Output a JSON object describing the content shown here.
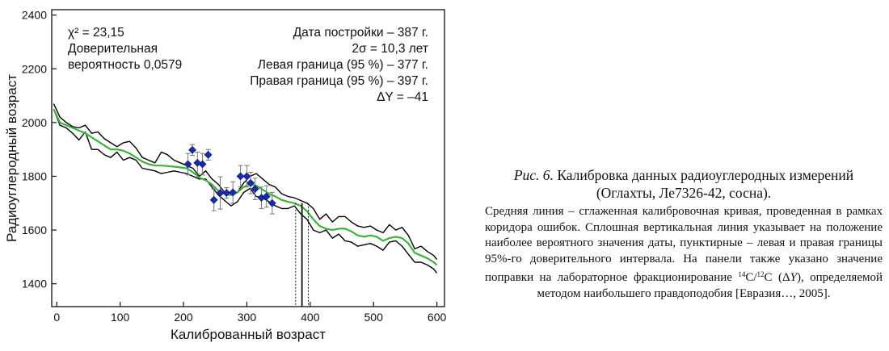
{
  "chart_data": {
    "type": "line",
    "xlabel": "Калиброванный возраст",
    "ylabel": "Радиоуглеродный возраст",
    "xlim": [
      -8,
      612
    ],
    "ylim": [
      1315,
      2420
    ],
    "x_ticks": [
      "0",
      "100",
      "200",
      "300",
      "400",
      "500",
      "600"
    ],
    "y_ticks": [
      "1400",
      "1600",
      "1800",
      "2000",
      "2200",
      "2400"
    ],
    "grid": false,
    "series": [
      {
        "role": "upper-bound",
        "color": "#000000",
        "x": [
          -5,
          5,
          15,
          25,
          35,
          45,
          55,
          65,
          75,
          85,
          95,
          105,
          115,
          125,
          135,
          145,
          155,
          165,
          175,
          185,
          195,
          205,
          215,
          225,
          235,
          245,
          255,
          265,
          275,
          285,
          295,
          305,
          315,
          325,
          335,
          345,
          355,
          365,
          375,
          385,
          395,
          405,
          415,
          425,
          435,
          445,
          455,
          465,
          475,
          485,
          495,
          505,
          515,
          525,
          535,
          545,
          555,
          565,
          575,
          585,
          595,
          600
        ],
        "y": [
          2070,
          2020,
          2000,
          1985,
          1980,
          1990,
          1960,
          1965,
          1940,
          1925,
          1910,
          1925,
          1930,
          1905,
          1870,
          1860,
          1850,
          1890,
          1880,
          1860,
          1850,
          1840,
          1830,
          1800,
          1820,
          1790,
          1770,
          1740,
          1730,
          1740,
          1775,
          1800,
          1810,
          1790,
          1770,
          1760,
          1735,
          1725,
          1720,
          1710,
          1700,
          1680,
          1640,
          1660,
          1630,
          1650,
          1650,
          1630,
          1615,
          1610,
          1615,
          1600,
          1590,
          1620,
          1600,
          1610,
          1580,
          1530,
          1540,
          1520,
          1505,
          1490
        ]
      },
      {
        "role": "lower-bound",
        "color": "#000000",
        "x": [
          -5,
          5,
          15,
          25,
          35,
          45,
          55,
          65,
          75,
          85,
          95,
          105,
          115,
          125,
          135,
          145,
          155,
          165,
          175,
          185,
          195,
          205,
          215,
          225,
          235,
          245,
          255,
          265,
          275,
          285,
          295,
          305,
          315,
          325,
          335,
          345,
          355,
          365,
          375,
          385,
          395,
          405,
          415,
          425,
          435,
          445,
          455,
          465,
          475,
          485,
          495,
          505,
          515,
          525,
          535,
          545,
          555,
          565,
          575,
          585,
          595,
          600
        ],
        "y": [
          2050,
          1990,
          1980,
          1960,
          1935,
          1965,
          1900,
          1900,
          1880,
          1870,
          1890,
          1860,
          1870,
          1860,
          1830,
          1825,
          1820,
          1810,
          1815,
          1820,
          1815,
          1810,
          1800,
          1790,
          1790,
          1760,
          1730,
          1710,
          1690,
          1705,
          1740,
          1755,
          1725,
          1720,
          1705,
          1690,
          1680,
          1680,
          1690,
          1660,
          1640,
          1600,
          1590,
          1600,
          1570,
          1585,
          1560,
          1555,
          1540,
          1545,
          1550,
          1540,
          1525,
          1555,
          1560,
          1540,
          1510,
          1480,
          1480,
          1470,
          1455,
          1440
        ]
      },
      {
        "role": "smoothed-calibration-curve",
        "color": "#3cb43c",
        "x": [
          -5,
          5,
          15,
          25,
          35,
          45,
          55,
          65,
          75,
          85,
          95,
          105,
          115,
          125,
          135,
          145,
          155,
          165,
          175,
          185,
          195,
          205,
          215,
          225,
          235,
          245,
          255,
          265,
          275,
          285,
          295,
          305,
          315,
          325,
          335,
          345,
          355,
          365,
          375,
          385,
          395,
          405,
          415,
          425,
          435,
          445,
          455,
          465,
          475,
          485,
          495,
          505,
          515,
          525,
          535,
          545,
          555,
          565,
          575,
          585,
          595,
          600
        ],
        "y": [
          2050,
          2000,
          1990,
          1980,
          1970,
          1960,
          1945,
          1930,
          1915,
          1900,
          1900,
          1895,
          1885,
          1870,
          1855,
          1845,
          1840,
          1840,
          1838,
          1836,
          1833,
          1830,
          1815,
          1795,
          1785,
          1770,
          1745,
          1735,
          1730,
          1740,
          1760,
          1770,
          1765,
          1750,
          1735,
          1725,
          1712,
          1705,
          1700,
          1690,
          1670,
          1640,
          1615,
          1605,
          1600,
          1605,
          1605,
          1595,
          1580,
          1575,
          1580,
          1575,
          1560,
          1570,
          1575,
          1570,
          1550,
          1515,
          1505,
          1495,
          1480,
          1470
        ]
      }
    ],
    "measurements": {
      "color": "#1a2aa8",
      "points": [
        {
          "x": 207,
          "y": 1845,
          "err": 40
        },
        {
          "x": 214,
          "y": 1898,
          "err": 20
        },
        {
          "x": 222,
          "y": 1850,
          "err": 40
        },
        {
          "x": 230,
          "y": 1845,
          "err": 40
        },
        {
          "x": 239,
          "y": 1880,
          "err": 20
        },
        {
          "x": 248,
          "y": 1712,
          "err": 40
        },
        {
          "x": 258,
          "y": 1738,
          "err": 60
        },
        {
          "x": 268,
          "y": 1738,
          "err": 20
        },
        {
          "x": 278,
          "y": 1740,
          "err": 40
        },
        {
          "x": 290,
          "y": 1800,
          "err": 40
        },
        {
          "x": 300,
          "y": 1800,
          "err": 40
        },
        {
          "x": 306,
          "y": 1775,
          "err": 40
        },
        {
          "x": 313,
          "y": 1753,
          "err": 40
        },
        {
          "x": 323,
          "y": 1720,
          "err": 40
        },
        {
          "x": 331,
          "y": 1725,
          "err": 40
        },
        {
          "x": 340,
          "y": 1700,
          "err": 40
        }
      ]
    },
    "vertical_lines": [
      {
        "x": 377,
        "style": "dotted",
        "y_top": 1700
      },
      {
        "x": 387,
        "style": "solid",
        "y_top": 1700
      },
      {
        "x": 397,
        "style": "dotted",
        "y_top": 1700
      }
    ],
    "annotations": {
      "left": [
        "χ² = 23,15",
        "Доверительная",
        "вероятность 0,0579"
      ],
      "right": [
        "Дата постройки – 387 г.",
        "2σ = 10,3 лет",
        "Левая граница (95 %) – 377 г.",
        "Правая граница (95 %) – 397 г.",
        "ΔY = –41"
      ]
    }
  },
  "caption": {
    "title_italic": "Рис. 6.",
    "title_rest": " Калибровка данных радиоуглеродных измерений (Оглахты, Ле7326-42, сосна).",
    "body_part1": "Средняя линия – сглаженная калибровочная кривая, проведенная в рамках коридора ошибок. Сплошная вертикальная линия указывает на положение наиболее вероятного значения даты, пунктирные – левая и правая границы 95%-го доверительного интервала. На панели также указано значение поправки на лабораторное фракционирование ",
    "sup1": "14",
    "c1": "C/",
    "sup2": "12",
    "c2": "C (Δ",
    "y_italic": "Y",
    "body_part2": "), определяемой методом наибольшего правдоподобия [Евразия…, 2005]."
  }
}
